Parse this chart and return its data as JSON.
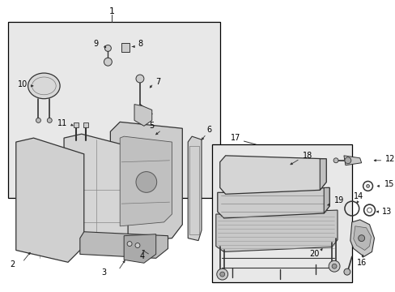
{
  "bg_color": "#ffffff",
  "box1_bg": "#e8e8e8",
  "box2_bg": "#e8e8e8",
  "line_color": "#333333",
  "fill_light": "#d8d8d8",
  "fill_mid": "#c8c8c8",
  "fill_dark": "#b0b0b0"
}
